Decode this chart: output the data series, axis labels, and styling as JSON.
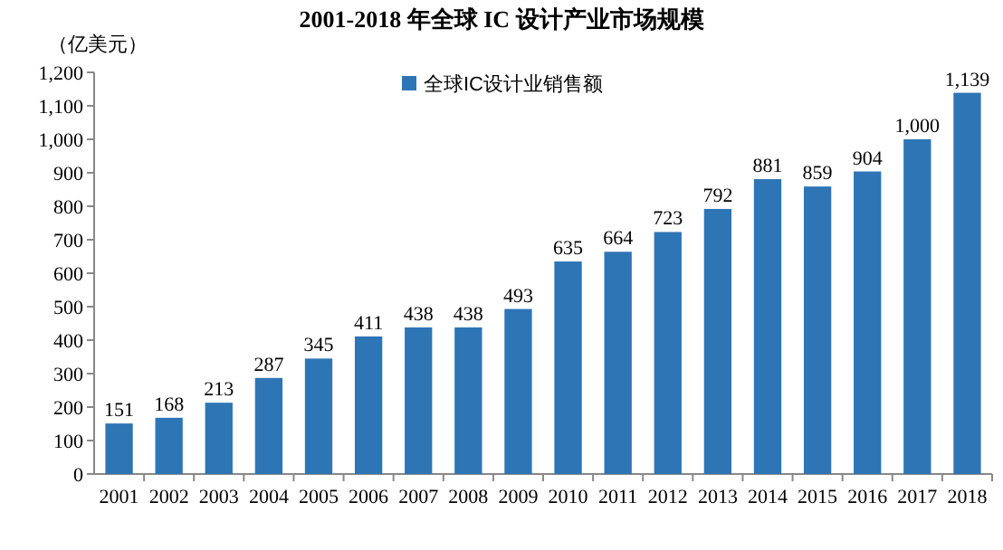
{
  "chart_data": {
    "type": "bar",
    "title": "2001-2018 年全球 IC 设计产业市场规模",
    "ylabel": "（亿美元）",
    "categories": [
      "2001",
      "2002",
      "2003",
      "2004",
      "2005",
      "2006",
      "2007",
      "2008",
      "2009",
      "2010",
      "2011",
      "2012",
      "2013",
      "2014",
      "2015",
      "2016",
      "2017",
      "2018"
    ],
    "series": [
      {
        "name": "全球IC设计业销售额",
        "color": "#2e75b6",
        "values": [
          151,
          168,
          213,
          287,
          345,
          411,
          438,
          438,
          493,
          635,
          664,
          723,
          792,
          881,
          859,
          904,
          1000,
          1139
        ]
      }
    ],
    "value_labels": [
      "151",
      "168",
      "213",
      "287",
      "345",
      "411",
      "438",
      "438",
      "493",
      "635",
      "664",
      "723",
      "792",
      "881",
      "859",
      "904",
      "1,000",
      "1,139"
    ],
    "ylim": [
      0,
      1200
    ],
    "yticks": [
      0,
      100,
      200,
      300,
      400,
      500,
      600,
      700,
      800,
      900,
      {
        "value": 1000,
        "label": "1,000"
      },
      {
        "value": 1100,
        "label": "1,100"
      },
      {
        "value": 1200,
        "label": "1,200"
      }
    ],
    "grid": false,
    "legend": "top left"
  }
}
